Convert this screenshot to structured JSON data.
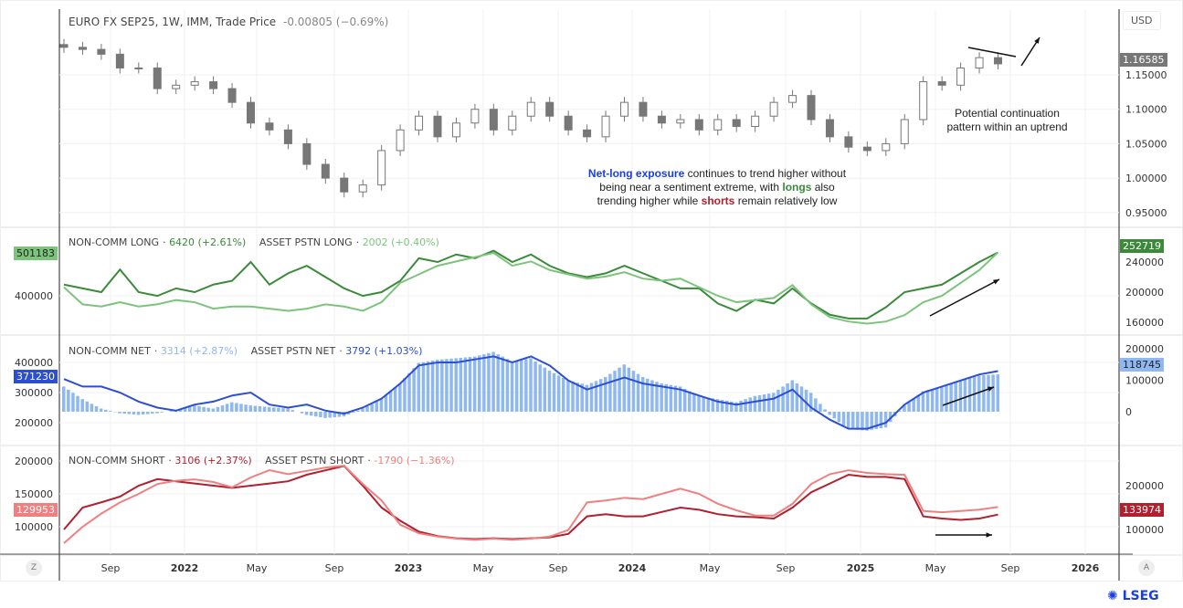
{
  "header": {
    "title": "EURO FX SEP25, 1W, IMM, Trade Price",
    "change": "-0.00805 (−0.69%)",
    "currency": "USD"
  },
  "panes": {
    "long": {
      "s1": "NON-COMM LONG",
      "s1v": "6420 (+2.61%)",
      "s2": "ASSET PSTN LONG",
      "s2v": "2002 (+0.40%)",
      "left_tag": "501183",
      "right_tag": "252719"
    },
    "net": {
      "s1": "NON-COMM NET",
      "s1v": "3314 (+2.87%)",
      "s2": "ASSET PSTN NET",
      "s2v": "3792 (+1.03%)",
      "left_tag": "371230",
      "right_tag": "118745"
    },
    "short": {
      "s1": "NON-COMM SHORT",
      "s1v": "3106 (+2.37%)",
      "s2": "ASSET PSTN SHORT",
      "s2v": "-1790 (−1.36%)",
      "left_tag": "129953",
      "right_tag": "133974"
    }
  },
  "price_tag": "1.16585",
  "annotations": {
    "pattern": [
      "Potential continuation",
      "pattern within an uptrend"
    ],
    "n1": "Net-long exposure",
    "n2": " continues to trend higher without",
    "n3": "being near a sentiment extreme, with ",
    "n4": "longs",
    "n5": " also",
    "n6": "trending higher while ",
    "n7": "shorts",
    "n8": " remain relatively low"
  },
  "buttons": {
    "z": "Z",
    "a": "A"
  },
  "logo": "LSEG",
  "colors": {
    "long_dark": "#3a8a3a",
    "long_light": "#7cc47c",
    "net_dark": "#2c4fd1",
    "net_bar": "#8fb8f0",
    "short_dark": "#b0202e",
    "short_light": "#f08080",
    "candle": "#777777",
    "blue_text": "#1a3fe0",
    "green_text": "#3a8a3a",
    "red_text": "#b0202e"
  },
  "chart_data": [
    {
      "type": "candlestick",
      "title": "EURO FX SEP25, 1W, IMM, Trade Price",
      "yticks": [
        "1.15000",
        "1.10000",
        "1.05000",
        "1.00000",
        "0.95000"
      ],
      "ylim": [
        0.94,
        1.205
      ],
      "x": [
        "2021-06",
        "2021-07",
        "2021-08",
        "2021-09",
        "2021-10",
        "2021-11",
        "2021-12",
        "2022-01",
        "2022-02",
        "2022-03",
        "2022-04",
        "2022-05",
        "2022-06",
        "2022-07",
        "2022-08",
        "2022-09",
        "2022-10",
        "2022-11",
        "2022-12",
        "2023-01",
        "2023-02",
        "2023-03",
        "2023-04",
        "2023-05",
        "2023-06",
        "2023-07",
        "2023-08",
        "2023-09",
        "2023-10",
        "2023-11",
        "2023-12",
        "2024-01",
        "2024-02",
        "2024-03",
        "2024-04",
        "2024-05",
        "2024-06",
        "2024-07",
        "2024-08",
        "2024-09",
        "2024-10",
        "2024-11",
        "2024-12",
        "2025-01",
        "2025-02",
        "2025-03",
        "2025-04",
        "2025-05",
        "2025-06",
        "2025-07",
        "2025-08"
      ],
      "close": [
        1.19,
        1.187,
        1.18,
        1.16,
        1.16,
        1.13,
        1.135,
        1.14,
        1.13,
        1.11,
        1.08,
        1.07,
        1.05,
        1.02,
        1.0,
        0.98,
        0.99,
        1.04,
        1.07,
        1.09,
        1.06,
        1.08,
        1.1,
        1.07,
        1.09,
        1.11,
        1.09,
        1.07,
        1.06,
        1.09,
        1.11,
        1.09,
        1.08,
        1.085,
        1.07,
        1.085,
        1.075,
        1.09,
        1.11,
        1.12,
        1.085,
        1.06,
        1.045,
        1.04,
        1.05,
        1.085,
        1.14,
        1.135,
        1.16,
        1.175,
        1.166
      ]
    },
    {
      "type": "line",
      "series": [
        {
          "name": "NON-COMM LONG",
          "axis": "right",
          "values": [
            210,
            205,
            200,
            230,
            200,
            195,
            205,
            200,
            210,
            215,
            240,
            210,
            225,
            235,
            220,
            205,
            195,
            200,
            215,
            245,
            240,
            250,
            245,
            255,
            240,
            250,
            235,
            225,
            220,
            225,
            235,
            225,
            215,
            205,
            205,
            185,
            175,
            190,
            185,
            205,
            185,
            170,
            165,
            165,
            180,
            200,
            205,
            210,
            225,
            240,
            252.7
          ]
        },
        {
          "name": "ASSET PSTN LONG",
          "axis": "left",
          "values": [
            420,
            380,
            375,
            385,
            375,
            380,
            390,
            385,
            370,
            375,
            375,
            370,
            365,
            370,
            380,
            375,
            365,
            385,
            430,
            450,
            470,
            480,
            490,
            500,
            470,
            480,
            460,
            450,
            440,
            445,
            455,
            440,
            435,
            440,
            420,
            400,
            385,
            390,
            395,
            425,
            380,
            350,
            340,
            335,
            340,
            355,
            385,
            400,
            430,
            460,
            501.2
          ]
        }
      ],
      "unit": "thousands",
      "left_ticks": [
        "400000"
      ],
      "right_ticks": [
        "240000",
        "200000",
        "160000"
      ]
    },
    {
      "type": "bar+line",
      "series": [
        {
          "name": "NON-COMM NET",
          "axis": "right",
          "kind": "bar",
          "values": [
            80,
            40,
            10,
            -5,
            -10,
            -5,
            5,
            20,
            10,
            30,
            20,
            15,
            10,
            -10,
            -20,
            -15,
            10,
            40,
            90,
            155,
            165,
            170,
            175,
            190,
            160,
            170,
            130,
            100,
            85,
            110,
            150,
            110,
            90,
            80,
            50,
            40,
            30,
            50,
            60,
            100,
            60,
            -10,
            -55,
            -60,
            -50,
            20,
            65,
            80,
            100,
            115,
            118.7
          ]
        },
        {
          "name": "ASSET PSTN NET",
          "axis": "left",
          "kind": "line",
          "values": [
            345,
            320,
            320,
            300,
            270,
            250,
            240,
            260,
            270,
            290,
            300,
            260,
            250,
            260,
            240,
            230,
            250,
            280,
            330,
            390,
            400,
            400,
            410,
            420,
            400,
            420,
            390,
            340,
            310,
            330,
            350,
            330,
            320,
            310,
            290,
            270,
            260,
            270,
            280,
            310,
            250,
            210,
            180,
            180,
            200,
            260,
            300,
            320,
            340,
            360,
            371.2
          ]
        }
      ],
      "unit": "thousands",
      "left_ticks": [
        "400000",
        "300000",
        "200000"
      ],
      "right_ticks": [
        "200000",
        "100000",
        "0"
      ]
    },
    {
      "type": "line",
      "series": [
        {
          "name": "NON-COMM SHORT",
          "axis": "right",
          "values": [
            100,
            150,
            162,
            175,
            200,
            215,
            210,
            205,
            200,
            195,
            200,
            205,
            210,
            225,
            235,
            245,
            200,
            150,
            120,
            95,
            85,
            80,
            78,
            80,
            78,
            80,
            82,
            90,
            130,
            135,
            130,
            130,
            140,
            150,
            145,
            135,
            130,
            128,
            125,
            150,
            185,
            205,
            225,
            220,
            220,
            215,
            130,
            125,
            122,
            125,
            134
          ]
        },
        {
          "name": "ASSET PSTN SHORT",
          "axis": "left",
          "values": [
            75,
            100,
            120,
            137,
            150,
            165,
            170,
            172,
            168,
            160,
            175,
            186,
            180,
            185,
            190,
            193,
            165,
            140,
            103,
            90,
            85,
            82,
            80,
            82,
            80,
            82,
            85,
            95,
            137,
            140,
            144,
            142,
            150,
            158,
            150,
            135,
            125,
            117,
            117,
            135,
            165,
            180,
            186,
            182,
            180,
            179,
            124,
            122,
            124,
            126,
            130
          ]
        }
      ],
      "unit": "thousands",
      "left_ticks": [
        "200000",
        "150000",
        "100000"
      ],
      "right_ticks": [
        "200000",
        "100000"
      ]
    }
  ],
  "time_axis": [
    "Sep",
    "2022",
    "May",
    "Sep",
    "2023",
    "May",
    "Sep",
    "2024",
    "May",
    "Sep",
    "2025",
    "May",
    "Sep",
    "2026"
  ]
}
